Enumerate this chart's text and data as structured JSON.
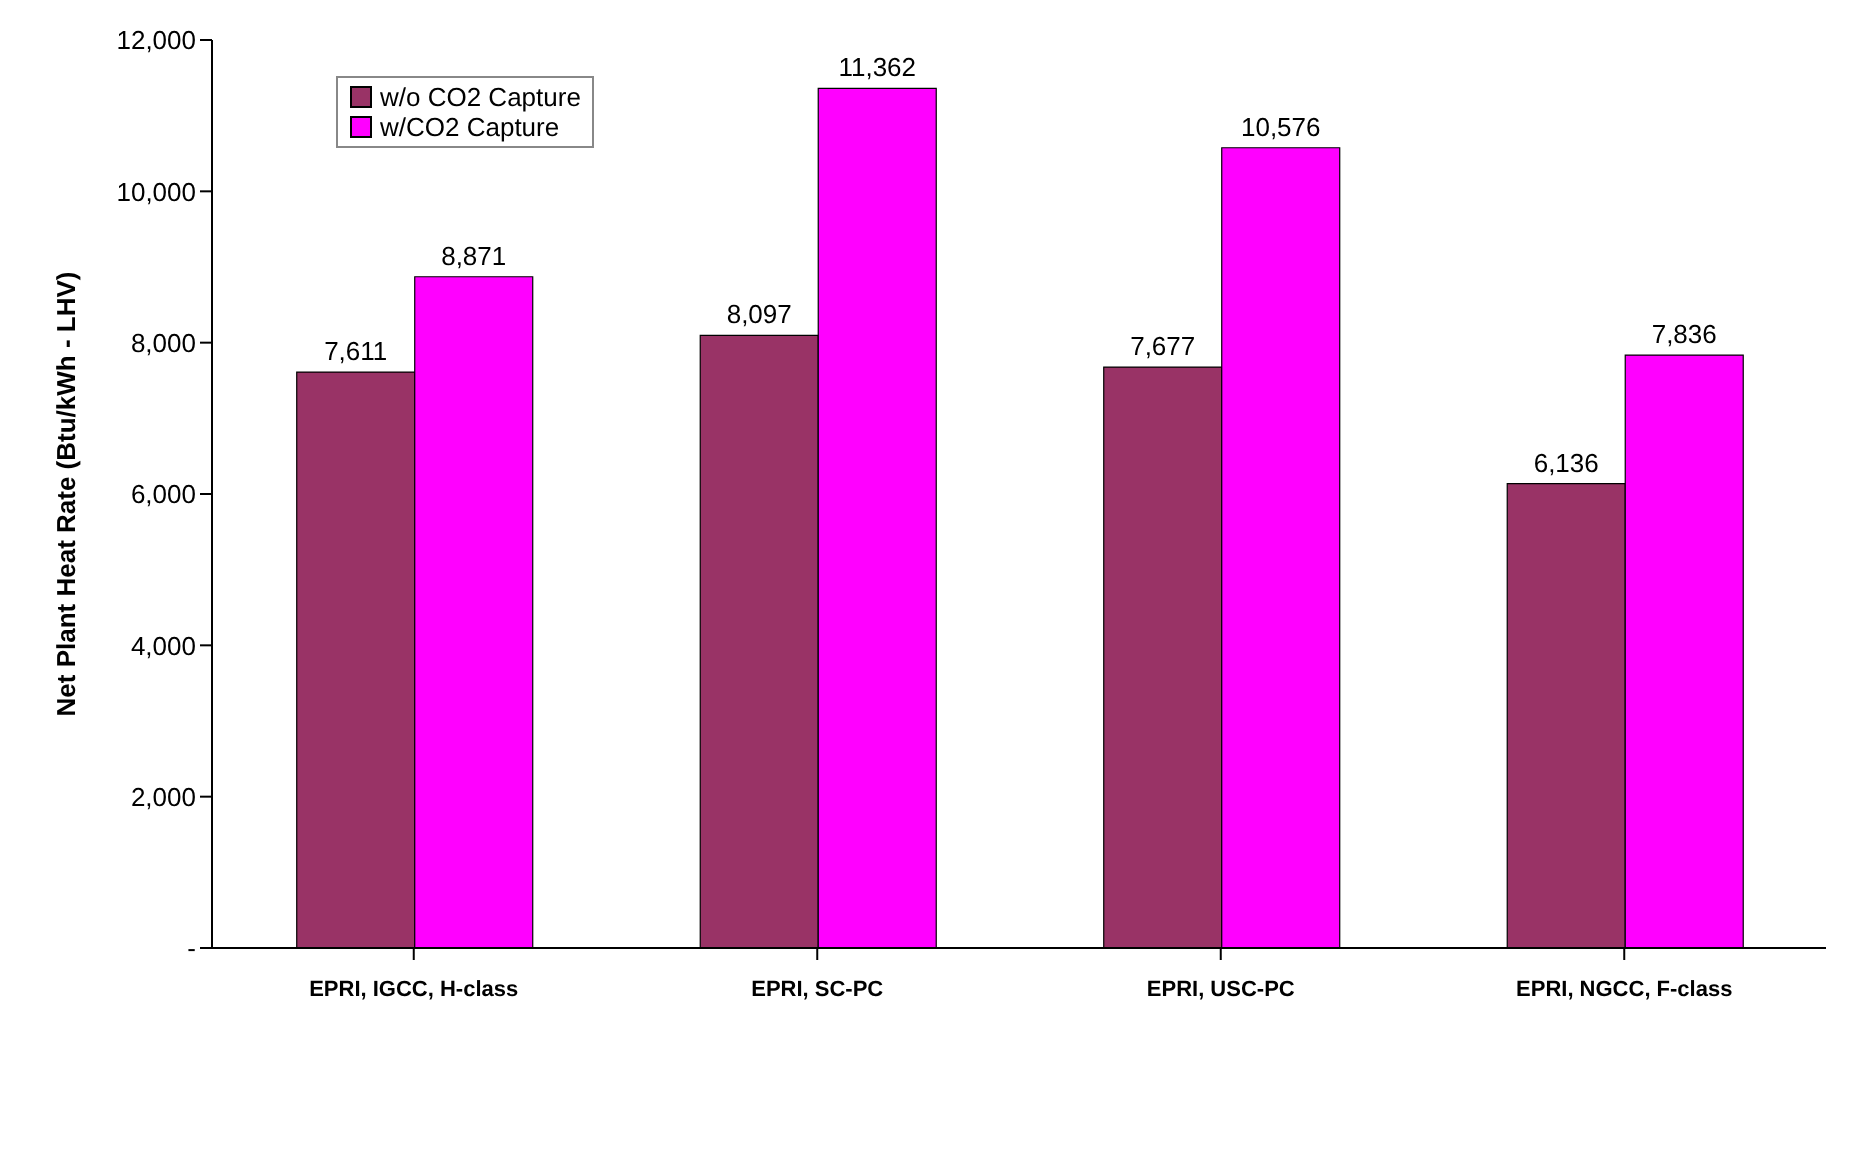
{
  "chart_data": {
    "type": "bar",
    "ylabel": "Net Plant Heat Rate (Btu/kWh - LHV)",
    "categories": [
      "EPRI, IGCC, H-class",
      "EPRI, SC-PC",
      "EPRI, USC-PC",
      "EPRI, NGCC, F-class"
    ],
    "series": [
      {
        "name": "w/o CO2 Capture",
        "color": "#993366",
        "values": [
          7611,
          8097,
          7677,
          6136
        ],
        "value_labels": [
          "7,611",
          "8,097",
          "7,677",
          "6,136"
        ]
      },
      {
        "name": "w/CO2 Capture",
        "color": "#ff00ff",
        "values": [
          8871,
          11362,
          10576,
          7836
        ],
        "value_labels": [
          "8,871",
          "11,362",
          "10,576",
          "7,836"
        ]
      }
    ],
    "ylim": [
      0,
      12000
    ],
    "yticks": [
      {
        "value": 0,
        "label": "-"
      },
      {
        "value": 2000,
        "label": "2,000"
      },
      {
        "value": 4000,
        "label": "4,000"
      },
      {
        "value": 6000,
        "label": "6,000"
      },
      {
        "value": 8000,
        "label": "8,000"
      },
      {
        "value": 10000,
        "label": "10,000"
      },
      {
        "value": 12000,
        "label": "12,000"
      }
    ],
    "legend": "top left",
    "grid": false
  }
}
